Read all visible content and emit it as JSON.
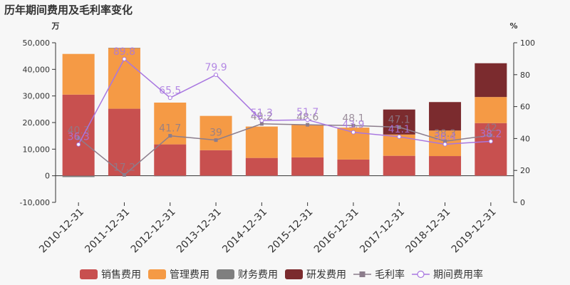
{
  "chart_data": {
    "type": "bar",
    "title": "历年期间费用及毛利率变化",
    "left_unit": "万",
    "right_unit": "%",
    "categories": [
      "2010-12-31",
      "2011-12-31",
      "2012-12-31",
      "2013-12-31",
      "2014-12-31",
      "2015-12-31",
      "2016-12-31",
      "2017-12-31",
      "2018-12-31",
      "2019-12-31"
    ],
    "ylim_left": [
      -10000,
      50000
    ],
    "yticks_left": [
      "-10,000",
      "0",
      "10,000",
      "20,000",
      "30,000",
      "40,000",
      "50,000"
    ],
    "yticks_left_values": [
      -10000,
      0,
      10000,
      20000,
      30000,
      40000,
      50000
    ],
    "ylim_right": [
      0,
      100
    ],
    "yticks_right": [
      "0",
      "20",
      "40",
      "60",
      "80",
      "100"
    ],
    "yticks_right_values": [
      0,
      20,
      40,
      60,
      80,
      100
    ],
    "stacked": true,
    "series": [
      {
        "name": "销售费用",
        "kind": "bar",
        "color": "#c8504f",
        "values": [
          30500,
          25200,
          11800,
          9600,
          6700,
          6900,
          6100,
          7500,
          7400,
          19800
        ]
      },
      {
        "name": "管理费用",
        "kind": "bar",
        "color": "#f59a45",
        "values": [
          15300,
          22800,
          15700,
          12900,
          11800,
          12200,
          12000,
          8000,
          9600,
          9800
        ]
      },
      {
        "name": "财务费用",
        "kind": "bar",
        "color": "#7f7f7f",
        "values": [
          -500,
          100,
          -200,
          -100,
          -100,
          -100,
          -100,
          -100,
          -200,
          -100
        ]
      },
      {
        "name": "研发费用",
        "kind": "bar",
        "color": "#7b2b2e",
        "values": [
          0,
          0,
          0,
          0,
          0,
          0,
          0,
          9400,
          10700,
          12700
        ]
      },
      {
        "name": "毛利率",
        "kind": "line",
        "axis": "right",
        "color": "#8c7d8c",
        "marker": "square",
        "values": [
          40.3,
          17.2,
          41.7,
          39,
          49.2,
          48.6,
          48.1,
          47.1,
          38.3,
          42
        ],
        "labels": [
          "40.3",
          "17.2",
          "41.7",
          "39",
          "49.2",
          "48.6",
          "48.1",
          "47.1",
          "38.3",
          "42"
        ]
      },
      {
        "name": "期间费用率",
        "kind": "line",
        "axis": "right",
        "color": "#a876e0",
        "marker": "circle",
        "values": [
          36.3,
          89.8,
          65.5,
          79.9,
          51.3,
          51.7,
          43.9,
          41.1,
          36.4,
          38.2
        ],
        "labels": [
          "36.3",
          "89.8",
          "65.5",
          "79.9",
          "51.3",
          "51.7",
          "43.9",
          "41.1",
          "36.4",
          "38.2"
        ]
      }
    ],
    "grid": false,
    "legend": "bottom"
  }
}
